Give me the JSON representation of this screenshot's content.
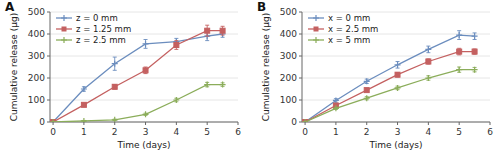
{
  "chart_data": [
    {
      "type": "line",
      "title": "A",
      "x": [
        0,
        1,
        2,
        3,
        4,
        5,
        5.5
      ],
      "series": [
        {
          "name": "z = 0 mm",
          "color": "#6B8DBE",
          "marker": "plus",
          "values": [
            0,
            150,
            265,
            355,
            365,
            390,
            400
          ],
          "yerr": [
            0,
            10,
            30,
            20,
            15,
            20,
            15
          ]
        },
        {
          "name": "z = 1.25 mm",
          "color": "#C46060",
          "marker": "square",
          "values": [
            0,
            78,
            160,
            235,
            350,
            415,
            415
          ],
          "yerr": [
            0,
            8,
            10,
            15,
            20,
            25,
            20
          ]
        },
        {
          "name": "z = 2.5 mm",
          "color": "#8BAD5A",
          "marker": "plus",
          "values": [
            0,
            5,
            10,
            35,
            100,
            170,
            170
          ],
          "yerr": [
            0,
            2,
            3,
            5,
            8,
            10,
            8
          ]
        }
      ],
      "xlabel": "Time (days)",
      "ylabel": "Cumulative release (μg)",
      "xlim": [
        -0.1,
        6
      ],
      "ylim": [
        0,
        500
      ],
      "xticks": [
        0,
        1,
        2,
        3,
        4,
        5,
        6
      ],
      "yticks": [
        0,
        100,
        200,
        300,
        400,
        500
      ],
      "legend": "upper left"
    },
    {
      "type": "line",
      "title": "B",
      "x": [
        0,
        1,
        2,
        3,
        4,
        5,
        5.5
      ],
      "series": [
        {
          "name": "x = 0 mm",
          "color": "#6B8DBE",
          "marker": "plus",
          "values": [
            0,
            98,
            185,
            260,
            330,
            395,
            390
          ],
          "yerr": [
            0,
            8,
            10,
            15,
            15,
            20,
            15
          ]
        },
        {
          "name": "x = 2.5 mm",
          "color": "#C46060",
          "marker": "square",
          "values": [
            0,
            75,
            145,
            215,
            275,
            320,
            320
          ],
          "yerr": [
            0,
            6,
            8,
            10,
            12,
            15,
            12
          ]
        },
        {
          "name": "x = 5 mm",
          "color": "#8BAD5A",
          "marker": "plus",
          "values": [
            0,
            62,
            108,
            155,
            200,
            238,
            238
          ],
          "yerr": [
            0,
            5,
            7,
            8,
            10,
            12,
            10
          ]
        }
      ],
      "xlabel": "Time (days)",
      "ylabel": "Cumulative release (μg)",
      "xlim": [
        -0.1,
        6
      ],
      "ylim": [
        0,
        500
      ],
      "xticks": [
        0,
        1,
        2,
        3,
        4,
        5,
        6
      ],
      "yticks": [
        0,
        100,
        200,
        300,
        400,
        500
      ],
      "legend": "upper left"
    }
  ]
}
